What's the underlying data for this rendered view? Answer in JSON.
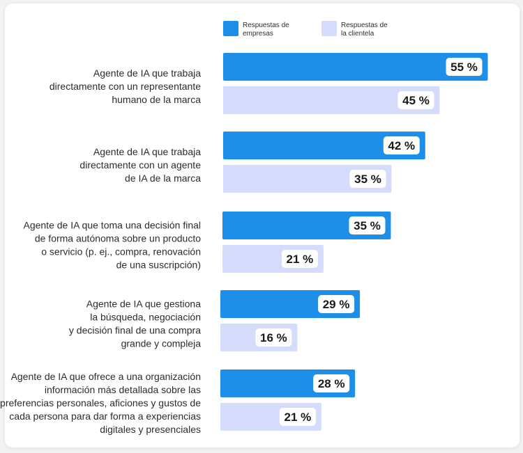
{
  "chart_data": {
    "type": "bar",
    "orientation": "horizontal",
    "grid": false,
    "legend_position": "top",
    "value_suffix": " %",
    "categories": [
      "Agente de IA que trabaja directamente con un representante humano de la marca",
      "Agente de IA que trabaja directamente con un agente de IA de la marca",
      "Agente de IA que toma una decisión final de forma autónoma sobre un producto o servicio (p. ej., compra, renovación de una suscripción)",
      "Agente de IA que gestiona la búsqueda, negociación y decisión final de una compra grande y compleja",
      "Agente de IA que ofrece a una organización información más detallada sobre las preferencias personales, aficiones y gustos de cada persona para dar forma a experiencias digitales y presenciales"
    ],
    "category_lines": [
      [
        "Agente de IA que trabaja",
        "directamente con un representante",
        "humano de la marca"
      ],
      [
        "Agente de IA que trabaja",
        "directamente con un agente",
        "de IA de la marca"
      ],
      [
        "Agente de IA que toma una decisión final",
        "de forma autónoma sobre un producto",
        "o servicio (p. ej., compra, renovación",
        "de una suscripción)"
      ],
      [
        "Agente de IA que gestiona",
        "la búsqueda, negociación",
        "y decisión final de una compra",
        "grande y compleja"
      ],
      [
        "Agente de IA que ofrece a una organización",
        "información más detallada sobre las",
        "preferencias personales, aficiones y gustos de",
        "cada persona para dar forma a experiencias",
        "digitales y presenciales"
      ]
    ],
    "series": [
      {
        "name": "Respuestas de empresas",
        "legend_lines": [
          "Respuestas de",
          "empresas"
        ],
        "color": "#1e8fe8",
        "values": [
          55,
          42,
          35,
          29,
          28
        ]
      },
      {
        "name": "Respuestas de la clientela",
        "legend_lines": [
          "Respuestas de",
          "la clientela"
        ],
        "color": "#d6dcfb",
        "values": [
          45,
          35,
          21,
          16,
          21
        ]
      }
    ]
  }
}
